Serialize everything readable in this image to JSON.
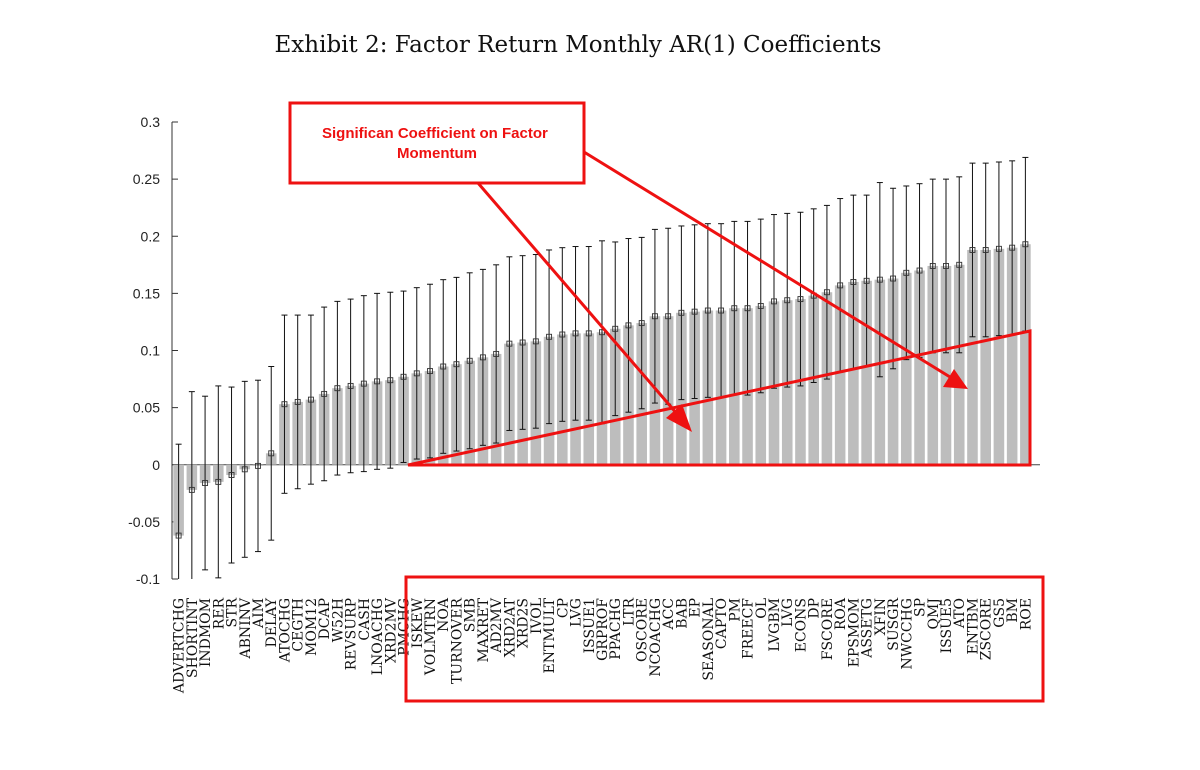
{
  "chart_data": {
    "type": "bar",
    "title": "Exhibit 2: Factor Return Monthly AR(1) Coefficients",
    "xlabel": "",
    "ylabel": "",
    "ylim": [
      -0.1,
      0.3
    ],
    "yticks": [
      "-0.1",
      "-0.05",
      "0",
      "0.05",
      "0.1",
      "0.15",
      "0.2",
      "0.25",
      "0.3"
    ],
    "ytick_values": [
      -0.1,
      -0.05,
      0,
      0.05,
      0.1,
      0.15,
      0.2,
      0.25,
      0.3
    ],
    "grid": false,
    "bar_color": "#bdbdbd",
    "categories": [
      "ADVERTCHG",
      "SHORTINT",
      "INDMOM",
      "RER",
      "STR",
      "ABNINV",
      "AIM",
      "DELAY",
      "ATOCHG",
      "CEGTH",
      "MOM12",
      "DCAP",
      "W52H",
      "REVSURP",
      "CASH",
      "LNOACHG",
      "XRD2MV",
      "PMCHG",
      "ISKEW",
      "VOLMTRN",
      "NOA",
      "TURNOVER",
      "SMB",
      "MAXRET",
      "AD2MV",
      "XRD2AT",
      "XRD2S",
      "IVOL",
      "ENTMULT",
      "CP",
      "LVG",
      "ISSUE1",
      "GRPROF",
      "PPACHG",
      "LTR",
      "OSCORE",
      "NCOACHG",
      "ACC",
      "BAB",
      "EP",
      "SEASONAL",
      "CAPTO",
      "PM",
      "FREECF",
      "OL",
      "LVGBM",
      "LVG",
      "ECONS",
      "DP",
      "FSCORE",
      "ROA",
      "EPSMOM",
      "ASSETG",
      "XFIN",
      "SUSGR",
      "NWCCHG",
      "SP",
      "QMJ",
      "ISSUE5",
      "ATO",
      "ENTBM",
      "ZSCORE",
      "GS5",
      "BM",
      "ROE"
    ],
    "values": [
      -0.062,
      -0.022,
      -0.016,
      -0.015,
      -0.009,
      -0.004,
      -0.001,
      0.01,
      0.053,
      0.055,
      0.057,
      0.062,
      0.067,
      0.069,
      0.071,
      0.073,
      0.074,
      0.077,
      0.08,
      0.082,
      0.086,
      0.088,
      0.091,
      0.094,
      0.097,
      0.106,
      0.107,
      0.108,
      0.112,
      0.114,
      0.115,
      0.115,
      0.116,
      0.119,
      0.122,
      0.124,
      0.13,
      0.13,
      0.133,
      0.134,
      0.135,
      0.135,
      0.137,
      0.137,
      0.139,
      0.143,
      0.144,
      0.145,
      0.148,
      0.151,
      0.157,
      0.16,
      0.161,
      0.162,
      0.163,
      0.168,
      0.17,
      0.174,
      0.174,
      0.175,
      0.188,
      0.188,
      0.189,
      0.19,
      0.193
    ],
    "error_half_width": [
      0.08,
      0.086,
      0.076,
      0.084,
      0.077,
      0.077,
      0.075,
      0.076,
      0.078,
      0.076,
      0.074,
      0.076,
      0.076,
      0.076,
      0.077,
      0.077,
      0.077,
      0.075,
      0.075,
      0.076,
      0.076,
      0.076,
      0.077,
      0.077,
      0.078,
      0.076,
      0.076,
      0.076,
      0.076,
      0.076,
      0.076,
      0.076,
      0.08,
      0.076,
      0.076,
      0.075,
      0.076,
      0.077,
      0.076,
      0.076,
      0.076,
      0.076,
      0.076,
      0.076,
      0.076,
      0.076,
      0.076,
      0.076,
      0.076,
      0.076,
      0.076,
      0.076,
      0.075,
      0.085,
      0.079,
      0.076,
      0.076,
      0.076,
      0.076,
      0.077,
      0.076,
      0.076,
      0.076,
      0.076,
      0.076
    ],
    "annotations": [
      {
        "text": "Significan Coefficient on Factor Momentum",
        "color": "#ee1111"
      }
    ]
  }
}
